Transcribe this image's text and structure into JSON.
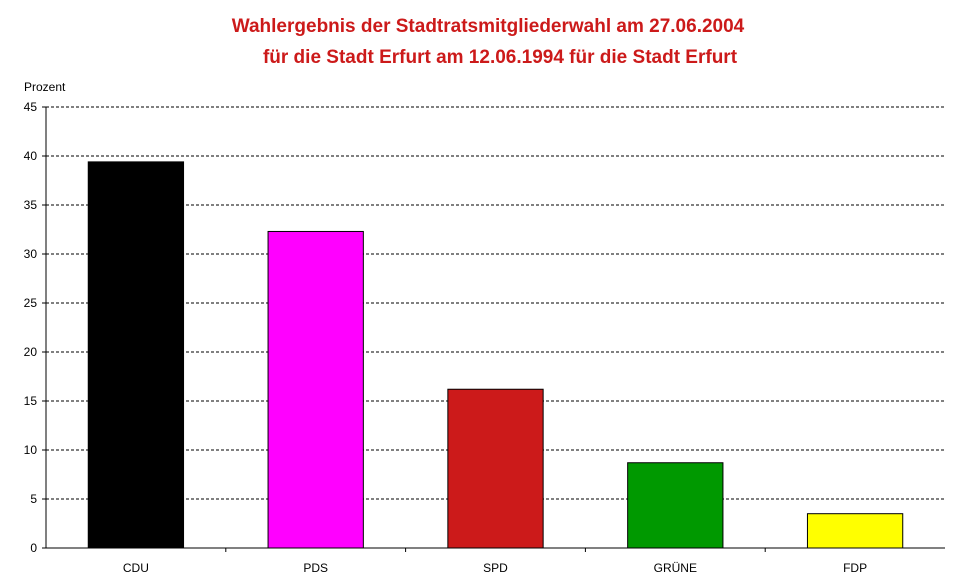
{
  "chart_data": {
    "type": "bar",
    "title_lines": [
      "Wahlergebnis der Stadtratsmitgliederwahl am 27.06.2004",
      "für die Stadt Erfurt am 12.06.1994 für die Stadt Erfurt"
    ],
    "ylabel": "Prozent",
    "xlabel": "",
    "ylim": [
      0,
      45
    ],
    "yticks": [
      "0",
      "5",
      "10",
      "15",
      "20",
      "25",
      "30",
      "35",
      "40",
      "45"
    ],
    "categories": [
      "CDU",
      "PDS",
      "SPD",
      "GRÜNE",
      "FDP"
    ],
    "values": [
      39.4,
      32.3,
      16.2,
      8.7,
      3.5
    ],
    "colors": [
      "#000000",
      "#ff00ff",
      "#cc1a1a",
      "#009900",
      "#ffff00"
    ],
    "grid": true,
    "legend": "none"
  },
  "colors": {
    "title": "#cc1a1a",
    "gridline": "#000000"
  }
}
